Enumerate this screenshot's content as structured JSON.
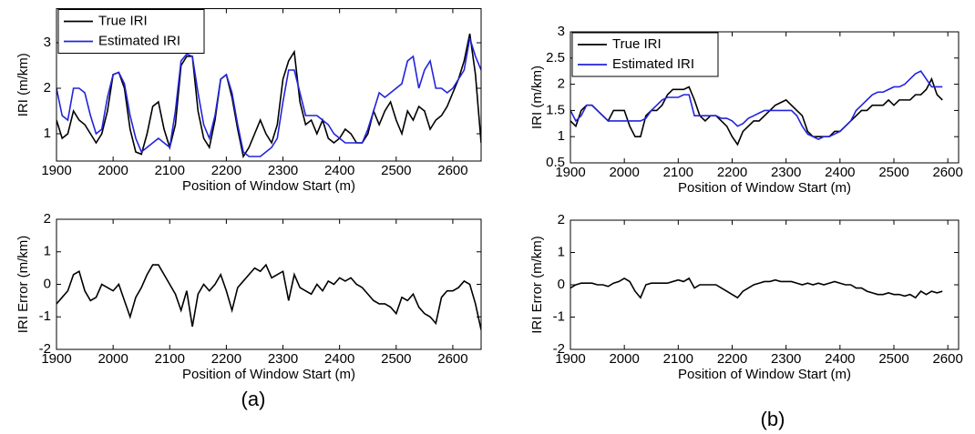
{
  "chart_data": [
    {
      "type": "line",
      "xlabel": "Position of Window Start (m)",
      "ylabel": "IRI (m/km)",
      "legend": "upper left",
      "grid": false,
      "xlim": [
        1900,
        2650
      ],
      "xticks": [
        1900,
        2000,
        2100,
        2200,
        2300,
        2400,
        2500,
        2600
      ],
      "ylim": [
        0.4,
        3.75
      ],
      "yticks": [
        1,
        2,
        3
      ],
      "x": [
        1900,
        1910,
        1920,
        1930,
        1940,
        1950,
        1960,
        1970,
        1980,
        1990,
        2000,
        2010,
        2020,
        2030,
        2040,
        2050,
        2060,
        2070,
        2080,
        2090,
        2100,
        2110,
        2120,
        2130,
        2140,
        2150,
        2160,
        2170,
        2180,
        2190,
        2200,
        2210,
        2220,
        2230,
        2240,
        2250,
        2260,
        2270,
        2280,
        2290,
        2300,
        2310,
        2320,
        2330,
        2340,
        2350,
        2360,
        2370,
        2380,
        2390,
        2400,
        2410,
        2420,
        2430,
        2440,
        2450,
        2460,
        2470,
        2480,
        2490,
        2500,
        2510,
        2520,
        2530,
        2540,
        2550,
        2560,
        2570,
        2580,
        2590,
        2600,
        2610,
        2620,
        2630,
        2640,
        2650
      ],
      "series": [
        {
          "name": "True IRI",
          "color": "#000000",
          "values": [
            1.3,
            0.9,
            1.0,
            1.5,
            1.3,
            1.2,
            1.0,
            0.8,
            1.0,
            1.5,
            2.3,
            2.35,
            2.0,
            1.1,
            0.6,
            0.55,
            1.0,
            1.6,
            1.7,
            1.1,
            0.7,
            1.2,
            2.5,
            2.7,
            2.7,
            1.5,
            0.9,
            0.7,
            1.3,
            2.2,
            2.3,
            1.8,
            1.1,
            0.5,
            0.7,
            1.0,
            1.3,
            1.0,
            0.8,
            1.2,
            2.2,
            2.6,
            2.8,
            1.7,
            1.2,
            1.3,
            1.0,
            1.3,
            0.9,
            0.8,
            0.9,
            1.1,
            1.0,
            0.8,
            0.8,
            1.0,
            1.5,
            1.2,
            1.5,
            1.7,
            1.3,
            1.0,
            1.5,
            1.3,
            1.6,
            1.5,
            1.1,
            1.3,
            1.4,
            1.6,
            1.9,
            2.2,
            2.6,
            3.2,
            2.3,
            0.8
          ]
        },
        {
          "name": "Estimated IRI",
          "color": "#2323dc",
          "values": [
            2.0,
            1.4,
            1.3,
            2.0,
            2.0,
            1.9,
            1.4,
            1.0,
            1.1,
            1.8,
            2.3,
            2.35,
            2.1,
            1.4,
            0.9,
            0.6,
            0.7,
            0.8,
            0.9,
            0.8,
            0.7,
            1.5,
            2.6,
            2.75,
            2.7,
            1.9,
            1.2,
            0.9,
            1.4,
            2.2,
            2.3,
            1.9,
            1.2,
            0.6,
            0.5,
            0.5,
            0.5,
            0.6,
            0.7,
            0.9,
            1.7,
            2.4,
            2.4,
            1.9,
            1.4,
            1.4,
            1.4,
            1.3,
            1.2,
            1.0,
            0.9,
            0.8,
            0.8,
            0.8,
            0.8,
            1.1,
            1.5,
            1.9,
            1.8,
            1.9,
            2.0,
            2.1,
            2.6,
            2.7,
            2.0,
            2.4,
            2.6,
            2.0,
            2.0,
            1.9,
            2.0,
            2.2,
            2.4,
            3.1,
            2.7,
            2.4
          ]
        }
      ]
    },
    {
      "type": "line",
      "xlabel": "Position of Window Start (m)",
      "ylabel": "IRI Error (m/km)",
      "grid": false,
      "xlim": [
        1900,
        2650
      ],
      "xticks": [
        1900,
        2000,
        2100,
        2200,
        2300,
        2400,
        2500,
        2600
      ],
      "ylim": [
        -2,
        2
      ],
      "yticks": [
        -2,
        -1,
        0,
        1,
        2
      ],
      "x": [
        1900,
        1910,
        1920,
        1930,
        1940,
        1950,
        1960,
        1970,
        1980,
        1990,
        2000,
        2010,
        2020,
        2030,
        2040,
        2050,
        2060,
        2070,
        2080,
        2090,
        2100,
        2110,
        2120,
        2130,
        2140,
        2150,
        2160,
        2170,
        2180,
        2190,
        2200,
        2210,
        2220,
        2230,
        2240,
        2250,
        2260,
        2270,
        2280,
        2290,
        2300,
        2310,
        2320,
        2330,
        2340,
        2350,
        2360,
        2370,
        2380,
        2390,
        2400,
        2410,
        2420,
        2430,
        2440,
        2450,
        2460,
        2470,
        2480,
        2490,
        2500,
        2510,
        2520,
        2530,
        2540,
        2550,
        2560,
        2570,
        2580,
        2590,
        2600,
        2610,
        2620,
        2630,
        2640,
        2650
      ],
      "series": [
        {
          "color": "#000000",
          "values": [
            -0.6,
            -0.4,
            -0.2,
            0.3,
            0.4,
            -0.2,
            -0.5,
            -0.4,
            0.0,
            -0.1,
            -0.2,
            0.0,
            -0.5,
            -1.0,
            -0.4,
            -0.1,
            0.3,
            0.6,
            0.6,
            0.3,
            0.0,
            -0.3,
            -0.8,
            -0.2,
            -1.3,
            -0.3,
            0.0,
            -0.2,
            0.0,
            0.3,
            -0.2,
            -0.8,
            -0.1,
            0.1,
            0.3,
            0.5,
            0.4,
            0.6,
            0.2,
            0.3,
            0.4,
            -0.5,
            0.3,
            -0.1,
            -0.2,
            -0.3,
            0.0,
            -0.2,
            0.1,
            0.0,
            0.2,
            0.1,
            0.2,
            0.0,
            -0.1,
            -0.3,
            -0.5,
            -0.6,
            -0.6,
            -0.7,
            -0.9,
            -0.4,
            -0.5,
            -0.3,
            -0.7,
            -0.9,
            -1.0,
            -1.2,
            -0.4,
            -0.2,
            -0.2,
            -0.1,
            0.1,
            0.0,
            -0.6,
            -1.4
          ]
        }
      ]
    },
    {
      "type": "line",
      "xlabel": "Position of Window Start (m)",
      "ylabel": "IRI (m/km)",
      "legend": "upper left",
      "grid": false,
      "xlim": [
        1900,
        2620
      ],
      "xticks": [
        1900,
        2000,
        2100,
        2200,
        2300,
        2400,
        2500,
        2600
      ],
      "ylim": [
        0.5,
        3
      ],
      "yticks": [
        0.5,
        1,
        1.5,
        2,
        2.5,
        3
      ],
      "x": [
        1900,
        1910,
        1920,
        1930,
        1940,
        1950,
        1960,
        1970,
        1980,
        1990,
        2000,
        2010,
        2020,
        2030,
        2040,
        2050,
        2060,
        2070,
        2080,
        2090,
        2100,
        2110,
        2120,
        2130,
        2140,
        2150,
        2160,
        2170,
        2180,
        2190,
        2200,
        2210,
        2220,
        2230,
        2240,
        2250,
        2260,
        2270,
        2280,
        2290,
        2300,
        2310,
        2320,
        2330,
        2340,
        2350,
        2360,
        2370,
        2380,
        2390,
        2400,
        2410,
        2420,
        2430,
        2440,
        2450,
        2460,
        2470,
        2480,
        2490,
        2500,
        2510,
        2520,
        2530,
        2540,
        2550,
        2560,
        2570,
        2580,
        2590
      ],
      "series": [
        {
          "name": "True IRI",
          "color": "#000000",
          "values": [
            1.3,
            1.2,
            1.5,
            1.6,
            1.6,
            1.5,
            1.4,
            1.3,
            1.5,
            1.5,
            1.5,
            1.2,
            1.0,
            1.0,
            1.4,
            1.5,
            1.5,
            1.6,
            1.8,
            1.9,
            1.9,
            1.9,
            1.95,
            1.7,
            1.4,
            1.3,
            1.4,
            1.4,
            1.3,
            1.2,
            1.0,
            0.85,
            1.1,
            1.2,
            1.3,
            1.3,
            1.4,
            1.5,
            1.6,
            1.65,
            1.7,
            1.6,
            1.5,
            1.4,
            1.1,
            1.0,
            1.0,
            1.0,
            1.0,
            1.1,
            1.1,
            1.2,
            1.3,
            1.4,
            1.5,
            1.5,
            1.6,
            1.6,
            1.6,
            1.7,
            1.6,
            1.7,
            1.7,
            1.7,
            1.8,
            1.8,
            1.9,
            2.1,
            1.8,
            1.7
          ]
        },
        {
          "name": "Estimated IRI",
          "color": "#2323dc",
          "values": [
            1.5,
            1.3,
            1.4,
            1.6,
            1.6,
            1.5,
            1.4,
            1.3,
            1.3,
            1.3,
            1.3,
            1.3,
            1.3,
            1.3,
            1.35,
            1.5,
            1.6,
            1.7,
            1.75,
            1.75,
            1.75,
            1.8,
            1.8,
            1.4,
            1.4,
            1.4,
            1.4,
            1.4,
            1.35,
            1.35,
            1.3,
            1.2,
            1.25,
            1.35,
            1.4,
            1.45,
            1.5,
            1.5,
            1.5,
            1.5,
            1.5,
            1.5,
            1.4,
            1.2,
            1.05,
            1.0,
            0.95,
            1.0,
            1.0,
            1.05,
            1.1,
            1.2,
            1.3,
            1.5,
            1.6,
            1.7,
            1.8,
            1.85,
            1.85,
            1.9,
            1.95,
            1.95,
            2.0,
            2.1,
            2.2,
            2.25,
            2.1,
            1.95,
            1.95,
            1.95
          ]
        }
      ]
    },
    {
      "type": "line",
      "xlabel": "Position of Window Start (m)",
      "ylabel": "IRI Error (m/km)",
      "grid": false,
      "xlim": [
        1900,
        2620
      ],
      "xticks": [
        1900,
        2000,
        2100,
        2200,
        2300,
        2400,
        2500,
        2600
      ],
      "ylim": [
        -2,
        2
      ],
      "yticks": [
        -2,
        -1,
        0,
        1,
        2
      ],
      "x": [
        1900,
        1910,
        1920,
        1930,
        1940,
        1950,
        1960,
        1970,
        1980,
        1990,
        2000,
        2010,
        2020,
        2030,
        2040,
        2050,
        2060,
        2070,
        2080,
        2090,
        2100,
        2110,
        2120,
        2130,
        2140,
        2150,
        2160,
        2170,
        2180,
        2190,
        2200,
        2210,
        2220,
        2230,
        2240,
        2250,
        2260,
        2270,
        2280,
        2290,
        2300,
        2310,
        2320,
        2330,
        2340,
        2350,
        2360,
        2370,
        2380,
        2390,
        2400,
        2410,
        2420,
        2430,
        2440,
        2450,
        2460,
        2470,
        2480,
        2490,
        2500,
        2510,
        2520,
        2530,
        2540,
        2550,
        2560,
        2570,
        2580,
        2590
      ],
      "series": [
        {
          "color": "#000000",
          "values": [
            -0.1,
            0.0,
            0.05,
            0.05,
            0.05,
            0.0,
            0.0,
            -0.05,
            0.05,
            0.1,
            0.2,
            0.1,
            -0.2,
            -0.4,
            0.0,
            0.05,
            0.05,
            0.05,
            0.05,
            0.1,
            0.15,
            0.1,
            0.2,
            -0.1,
            0.0,
            0.0,
            0.0,
            0.0,
            -0.1,
            -0.2,
            -0.3,
            -0.4,
            -0.2,
            -0.1,
            0.0,
            0.05,
            0.1,
            0.1,
            0.15,
            0.1,
            0.1,
            0.1,
            0.05,
            0.0,
            0.05,
            0.0,
            0.05,
            0.0,
            0.05,
            0.1,
            0.05,
            0.0,
            0.0,
            -0.1,
            -0.1,
            -0.2,
            -0.25,
            -0.3,
            -0.3,
            -0.25,
            -0.3,
            -0.3,
            -0.35,
            -0.3,
            -0.4,
            -0.2,
            -0.3,
            -0.2,
            -0.25,
            -0.2
          ]
        }
      ]
    }
  ],
  "panel_labels": [
    "(a)",
    "(b)"
  ]
}
